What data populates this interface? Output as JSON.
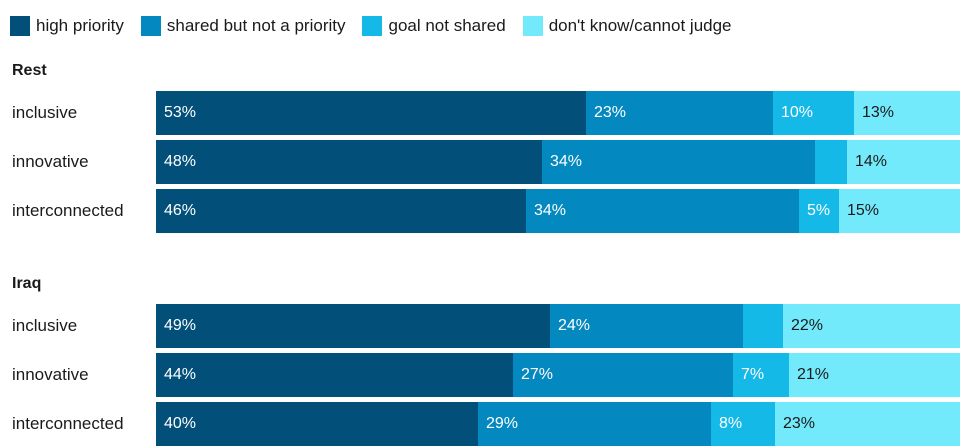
{
  "chart_data": {
    "type": "bar",
    "orientation": "horizontal",
    "stacked": true,
    "xlim": [
      0,
      100
    ],
    "legend_placement": "top-left",
    "series_names": [
      "high priority",
      "shared but not a priority",
      "goal not shared",
      "don't know/cannot judge"
    ],
    "colors": [
      "#02507a",
      "#0488c0",
      "#15b9e8",
      "#72eafc"
    ],
    "label_colors": [
      "#ffffff",
      "#ffffff",
      "#ffffff",
      "#1a1a1a"
    ],
    "groups": [
      {
        "title": "Rest",
        "rows": [
          {
            "category": "inclusive",
            "values": [
              53,
              23,
              10,
              13
            ],
            "labels": [
              "53%",
              "23%",
              "10%",
              "13%"
            ]
          },
          {
            "category": "innovative",
            "values": [
              48,
              34,
              4,
              14
            ],
            "labels": [
              "48%",
              "34%",
              "",
              "14%"
            ]
          },
          {
            "category": "interconnected",
            "values": [
              46,
              34,
              5,
              15
            ],
            "labels": [
              "46%",
              "34%",
              "5%",
              "15%"
            ]
          }
        ]
      },
      {
        "title": "Iraq",
        "rows": [
          {
            "category": "inclusive",
            "values": [
              49,
              24,
              5,
              22
            ],
            "labels": [
              "49%",
              "24%",
              "",
              "22%"
            ]
          },
          {
            "category": "innovative",
            "values": [
              44,
              27,
              7,
              21
            ],
            "labels": [
              "44%",
              "27%",
              "7%",
              "21%"
            ]
          },
          {
            "category": "interconnected",
            "values": [
              40,
              29,
              8,
              23
            ],
            "labels": [
              "40%",
              "29%",
              "8%",
              "23%"
            ]
          }
        ]
      }
    ]
  }
}
